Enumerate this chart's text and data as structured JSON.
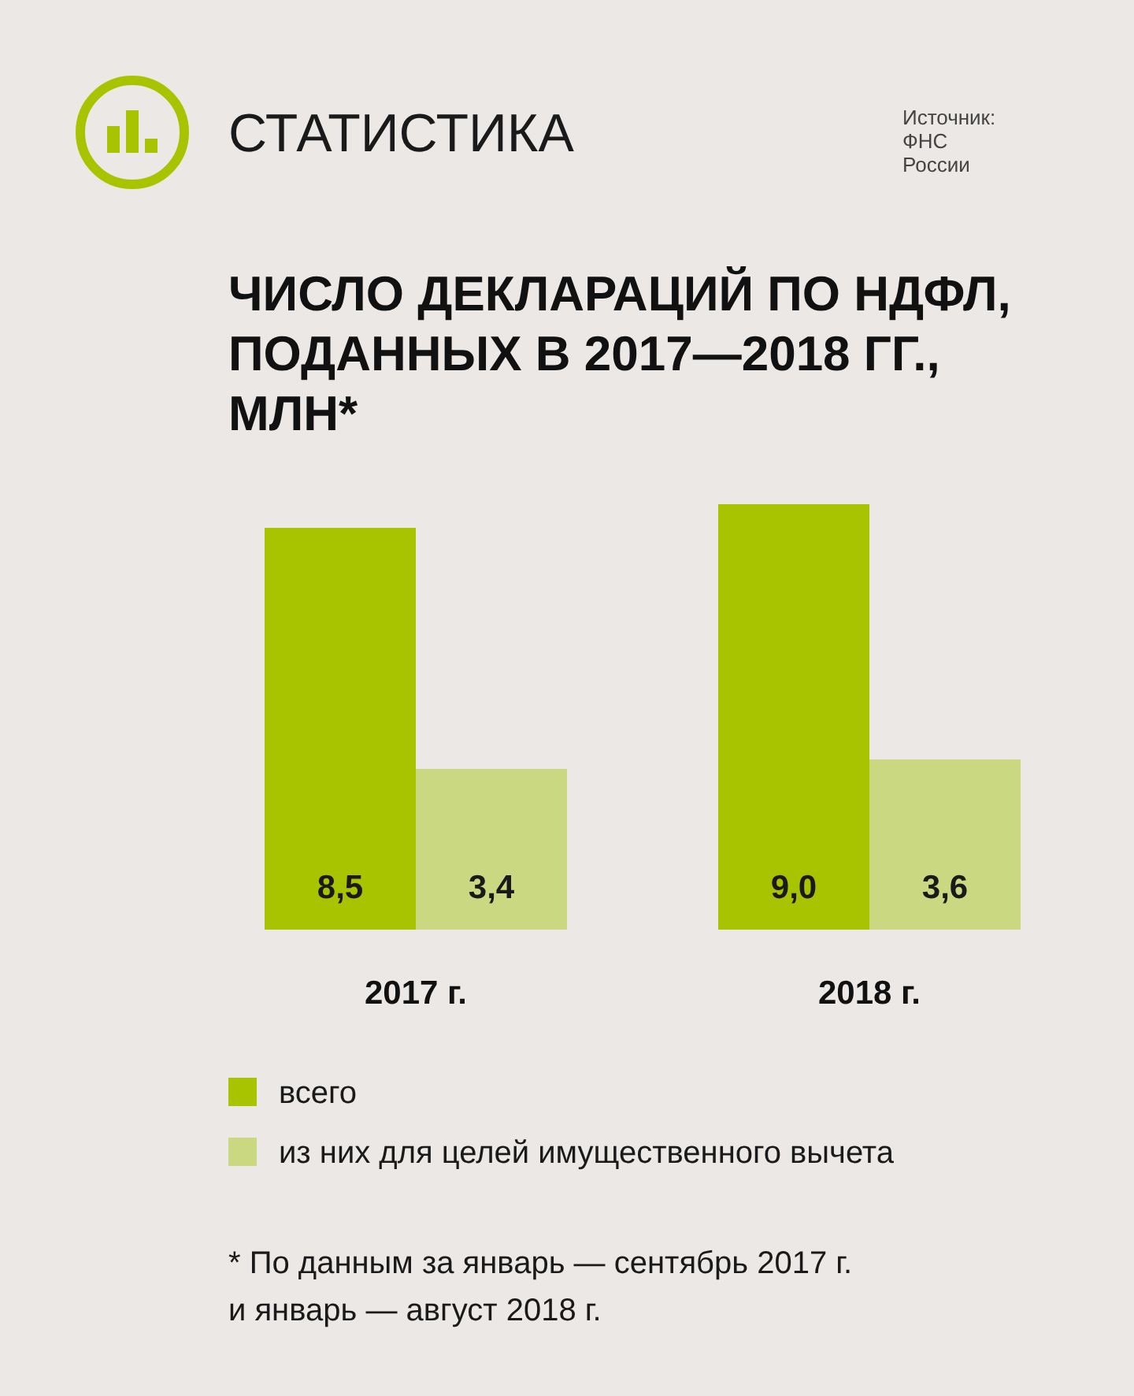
{
  "chart_data": {
    "type": "bar",
    "title": "ЧИСЛО ДЕКЛАРАЦИЙ ПО НДФЛ, ПОДАННЫХ В 2017—2018 ГГ., МЛН*",
    "categories": [
      "2017 г.",
      "2018 г."
    ],
    "series": [
      {
        "name": "всего",
        "color": "#a8c400",
        "values": [
          8.5,
          9.0
        ],
        "value_labels": [
          "8,5",
          "9,0"
        ]
      },
      {
        "name": "из них для целей имущественного вычета",
        "color": "#cbd882",
        "values": [
          3.4,
          3.6
        ],
        "value_labels": [
          "3,4",
          "3,6"
        ]
      }
    ],
    "legend": "bottom",
    "annotations": [
      "СТАТИСТИКА",
      "Источник: ФНС России",
      "* По данным за январь — сентябрь 2017 г. и январь — август 2018 г."
    ]
  }
}
